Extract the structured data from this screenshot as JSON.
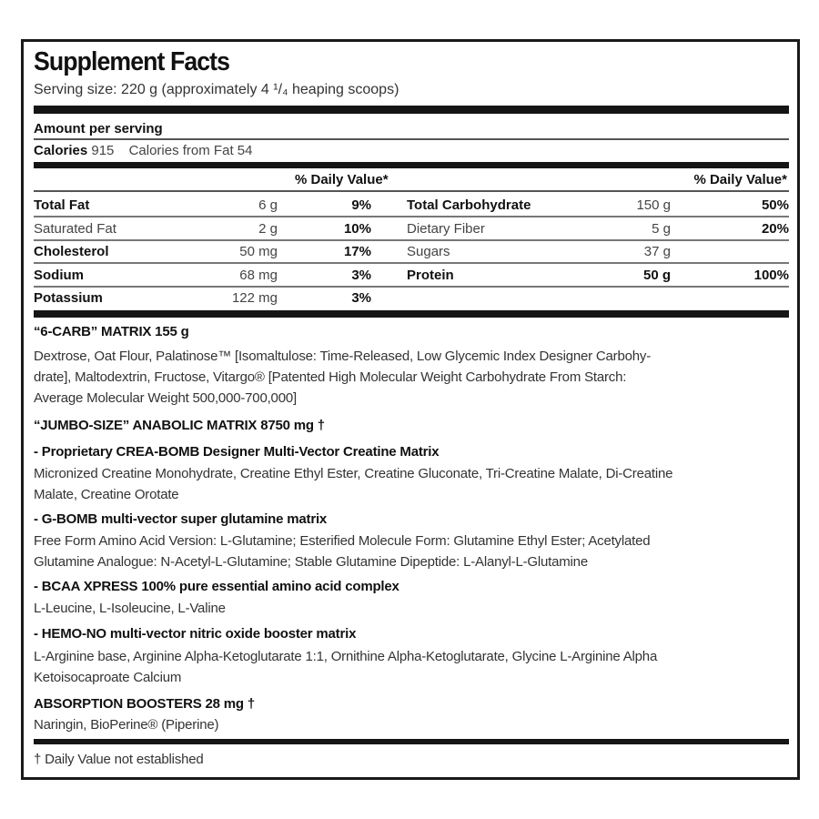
{
  "title": "Supplement Facts",
  "serving_size": "Serving size: 220 g (approximately 4 ¹/₄ heaping scoops)",
  "amount_per_serving": "Amount per serving",
  "calories_label": "Calories",
  "calories_value": "915",
  "calories_from_fat": "Calories from Fat 54",
  "dv_header_left": "% Daily Value*",
  "dv_header_right": "% Daily Value*",
  "nutrients": [
    {
      "left": {
        "name": "Total Fat",
        "amount": "6 g",
        "dv": "9%",
        "bold": true
      },
      "right": {
        "name": "Total Carbohydrate",
        "amount": "150 g",
        "dv": "50%",
        "bold": true
      }
    },
    {
      "left": {
        "name": "Saturated Fat",
        "amount": "2 g",
        "dv": "10%",
        "bold": false
      },
      "right": {
        "name": "Dietary Fiber",
        "amount": "5 g",
        "dv": "20%",
        "bold": false
      }
    },
    {
      "left": {
        "name": "Cholesterol",
        "amount": "50 mg",
        "dv": "17%",
        "bold": true
      },
      "right": {
        "name": "Sugars",
        "amount": "37 g",
        "dv": "",
        "bold": false
      }
    },
    {
      "left": {
        "name": "Sodium",
        "amount": "68 mg",
        "dv": "3%",
        "bold": true
      },
      "right": {
        "name": "Protein",
        "amount": "50 g",
        "dv": "100%",
        "bold": true,
        "amount_bold": true
      }
    },
    {
      "left": {
        "name": "Potassium",
        "amount": "122 mg",
        "dv": "3%",
        "bold": true
      },
      "right": {
        "name": "",
        "amount": "",
        "dv": "",
        "bold": false
      }
    }
  ],
  "sections": [
    {
      "heading": "“6-CARB” MATRIX 155 g",
      "lines": [
        "Dextrose, Oat Flour, Palatinose™ [Isomaltulose: Time-Released, Low Glycemic Index Designer Carbohy-",
        "drate], Maltodextrin, Fructose, Vitargo® [Patented High Molecular Weight Carbohydrate From Starch:",
        "Average Molecular Weight 500,000-700,000]"
      ]
    },
    {
      "heading": "“JUMBO-SIZE” ANABOLIC MATRIX  8750 mg †",
      "lines": []
    },
    {
      "heading": "- Proprietary CREA-BOMB Designer Multi-Vector Creatine Matrix",
      "lines": [
        "Micronized Creatine Monohydrate, Creatine Ethyl Ester, Creatine Gluconate, Tri-Creatine Malate, Di-Creatine",
        "Malate, Creatine Orotate"
      ]
    },
    {
      "heading": "- G-BOMB multi-vector super glutamine matrix",
      "lines": [
        "Free Form Amino Acid Version: L-Glutamine; Esterified Molecule Form: Glutamine Ethyl Ester; Acetylated",
        "Glutamine Analogue: N-Acetyl-L-Glutamine; Stable Glutamine Dipeptide: L-Alanyl-L-Glutamine"
      ]
    },
    {
      "heading": "- BCAA XPRESS 100% pure essential amino acid complex",
      "lines": [
        "L-Leucine, L-Isoleucine, L-Valine"
      ]
    },
    {
      "heading": "- HEMO-NO multi-vector nitric oxide booster matrix",
      "lines": [
        "L-Arginine base, Arginine Alpha-Ketoglutarate 1:1, Ornithine Alpha-Ketoglutarate, Glycine L-Arginine Alpha",
        "Ketoisocaproate Calcium"
      ]
    },
    {
      "heading": "ABSORPTION BOOSTERS 28 mg †",
      "lines": [
        "Naringin, BioPerine® (Piperine)"
      ]
    }
  ],
  "footnote": "† Daily Value not established"
}
